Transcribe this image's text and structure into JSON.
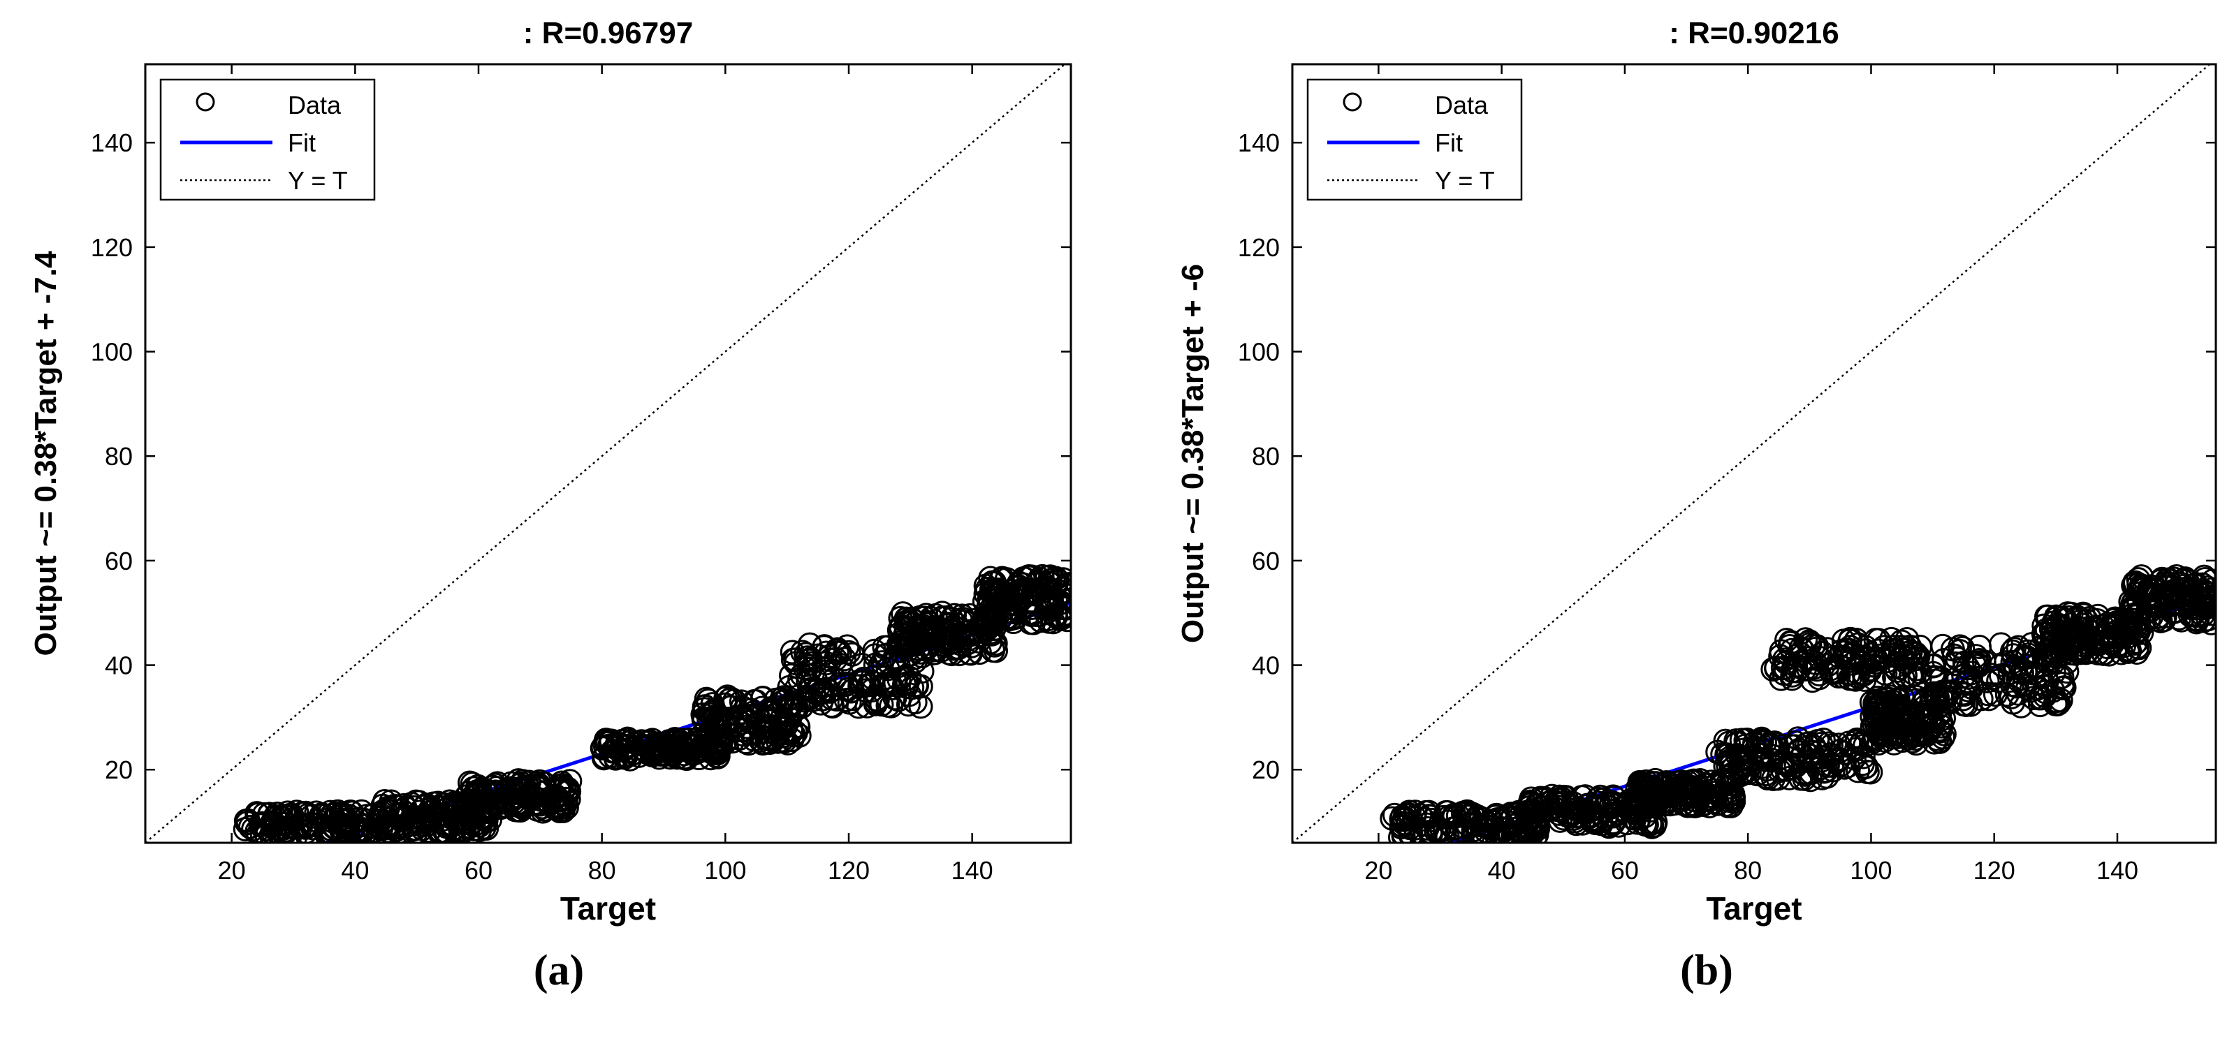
{
  "chart_data": [
    {
      "type": "scatter",
      "panel_label": "(a)",
      "title": ": R=0.96797",
      "xlabel": "Target",
      "ylabel": "Output ~= 0.38*Target + -7.4",
      "xlim": [
        6,
        156
      ],
      "ylim": [
        6,
        155
      ],
      "xticks": [
        20,
        40,
        60,
        80,
        100,
        120,
        140
      ],
      "yticks": [
        20,
        40,
        60,
        80,
        100,
        120,
        140
      ],
      "grid": false,
      "legend": {
        "placement": "top-left",
        "entries": [
          {
            "label": "Data",
            "marker": "circle"
          },
          {
            "label": "Fit",
            "style": "solid",
            "color": "#0000ff"
          },
          {
            "label": "Y = T",
            "style": "dotted",
            "color": "#000000"
          }
        ]
      },
      "fit": {
        "slope": 0.38,
        "intercept": -7.4
      },
      "reference_line": {
        "slope": 1,
        "intercept": 0
      },
      "point_clusters": [
        {
          "x": [
            22,
            46
          ],
          "y": [
            7,
            12
          ]
        },
        {
          "x": [
            44,
            62
          ],
          "y": [
            8,
            14
          ]
        },
        {
          "x": [
            58,
            75
          ],
          "y": [
            12,
            18
          ]
        },
        {
          "x": [
            80,
            100
          ],
          "y": [
            22,
            26
          ]
        },
        {
          "x": [
            96,
            112
          ],
          "y": [
            25,
            34
          ]
        },
        {
          "x": [
            110,
            132
          ],
          "y": [
            32,
            44
          ]
        },
        {
          "x": [
            128,
            144
          ],
          "y": [
            42,
            50
          ]
        },
        {
          "x": [
            142,
            156
          ],
          "y": [
            48,
            57
          ]
        }
      ]
    },
    {
      "type": "scatter",
      "panel_label": "(b)",
      "title": ": R=0.90216",
      "xlabel": "Target",
      "ylabel": "Output ~= 0.38*Target + -6",
      "xlim": [
        6,
        156
      ],
      "ylim": [
        6,
        155
      ],
      "xticks": [
        20,
        40,
        60,
        80,
        100,
        120,
        140
      ],
      "yticks": [
        20,
        40,
        60,
        80,
        100,
        120,
        140
      ],
      "grid": false,
      "legend": {
        "placement": "top-left",
        "entries": [
          {
            "label": "Data",
            "marker": "circle"
          },
          {
            "label": "Fit",
            "style": "solid",
            "color": "#0000ff"
          },
          {
            "label": "Y = T",
            "style": "dotted",
            "color": "#000000"
          }
        ]
      },
      "fit": {
        "slope": 0.38,
        "intercept": -6
      },
      "reference_line": {
        "slope": 1,
        "intercept": 0
      },
      "point_clusters": [
        {
          "x": [
            22,
            46
          ],
          "y": [
            7,
            12
          ]
        },
        {
          "x": [
            44,
            65
          ],
          "y": [
            9,
            15
          ]
        },
        {
          "x": [
            62,
            78
          ],
          "y": [
            13,
            18
          ]
        },
        {
          "x": [
            75,
            100
          ],
          "y": [
            18,
            26
          ]
        },
        {
          "x": [
            84,
            108
          ],
          "y": [
            37,
            45
          ]
        },
        {
          "x": [
            100,
            112
          ],
          "y": [
            25,
            34
          ]
        },
        {
          "x": [
            110,
            132
          ],
          "y": [
            32,
            44
          ]
        },
        {
          "x": [
            128,
            144
          ],
          "y": [
            42,
            50
          ]
        },
        {
          "x": [
            142,
            156
          ],
          "y": [
            48,
            57
          ]
        }
      ]
    }
  ]
}
